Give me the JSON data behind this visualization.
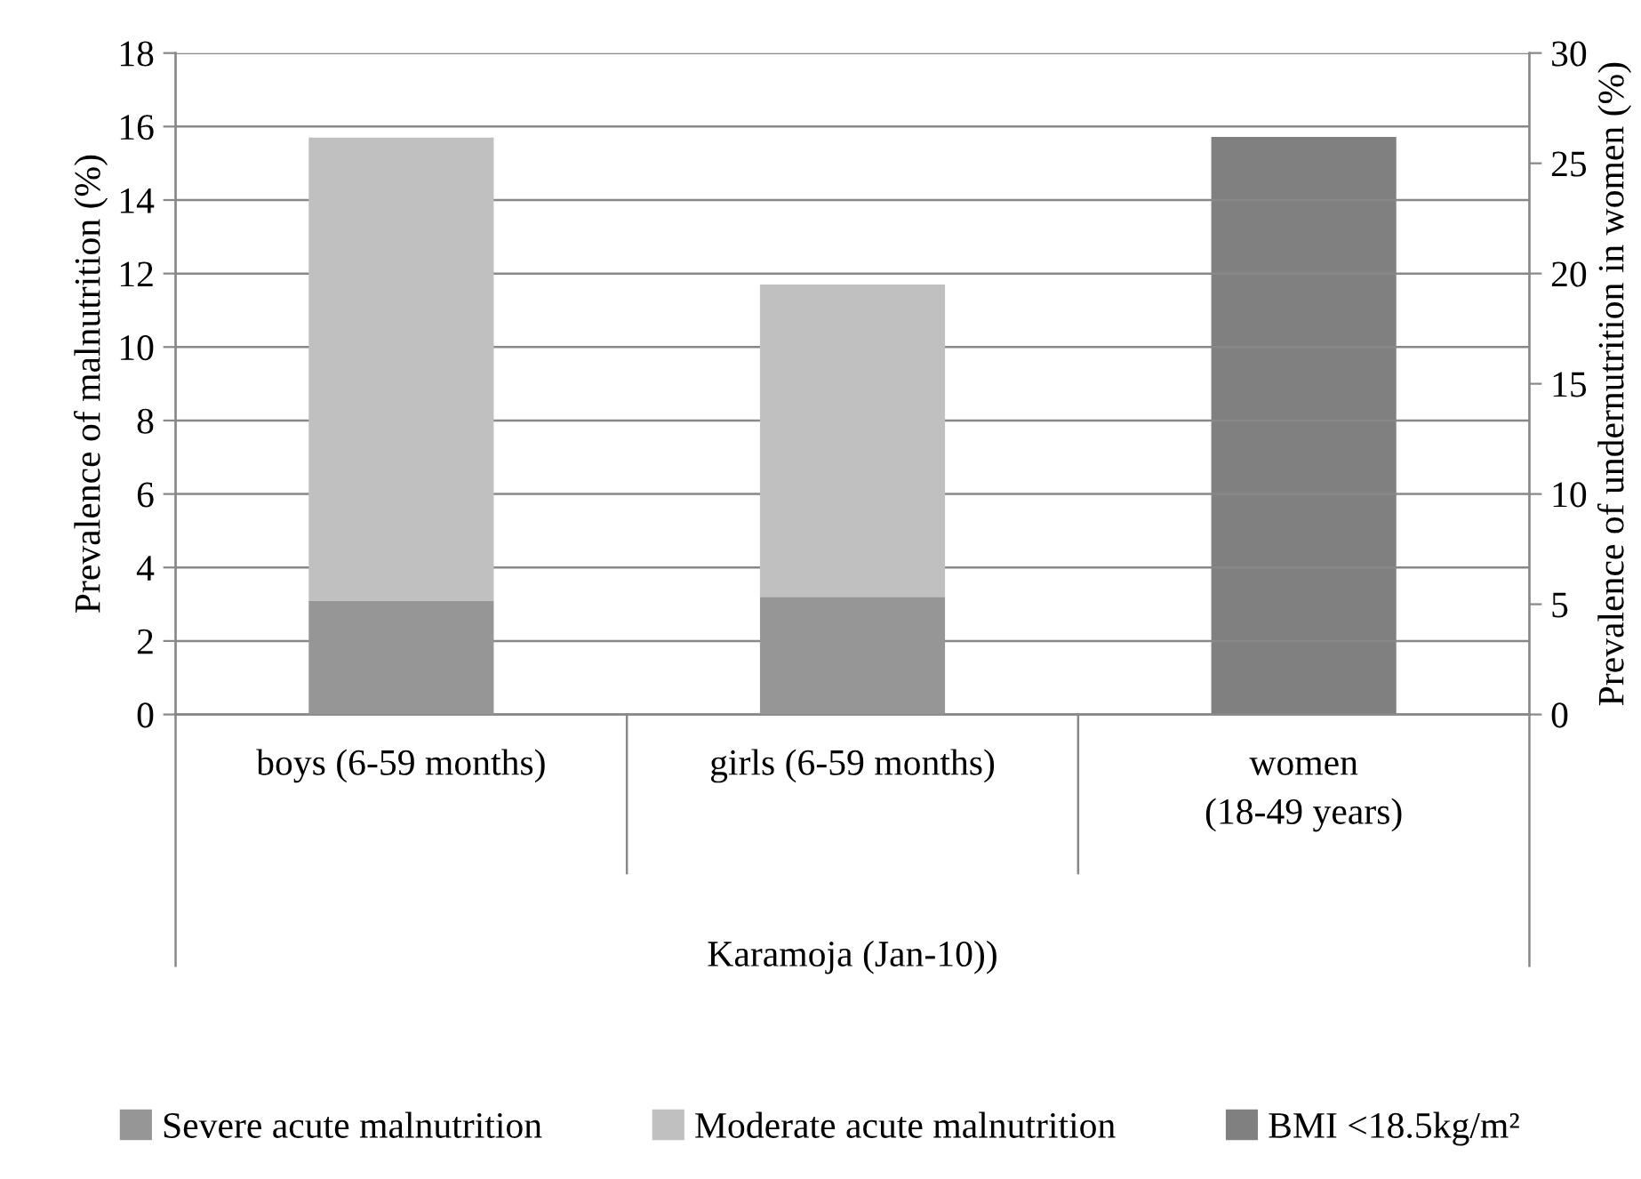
{
  "chart_data": {
    "type": "bar",
    "stacked": true,
    "ylabel": "Prevalence of malnutrition (%)",
    "y2label": "Prevalence of undernutrition in women (%)",
    "xlabel": "Karamoja (Jan-10))",
    "categories": [
      "boys (6-59 months)",
      "girls (6-59 months)",
      "women\n(18-49 years)"
    ],
    "series": [
      {
        "name": "Severe acute malnutrition",
        "color": "#969696",
        "values": [
          3.1,
          3.2,
          null
        ]
      },
      {
        "name": "Moderate acute malnutrition",
        "color": "#c0c0c0",
        "values": [
          12.6,
          8.5,
          null
        ]
      },
      {
        "name": "BMI <18.5kg/m²",
        "color": "#808080",
        "values": [
          null,
          null,
          26.2
        ],
        "axis": "y2"
      }
    ],
    "ylim": [
      0,
      18
    ],
    "yticks": [
      0,
      2,
      4,
      6,
      8,
      10,
      12,
      14,
      16,
      18
    ],
    "y2lim": [
      0,
      30
    ],
    "y2ticks": [
      0,
      5,
      10,
      15,
      20,
      25,
      30
    ],
    "grid": "y",
    "legend": "bottom"
  }
}
